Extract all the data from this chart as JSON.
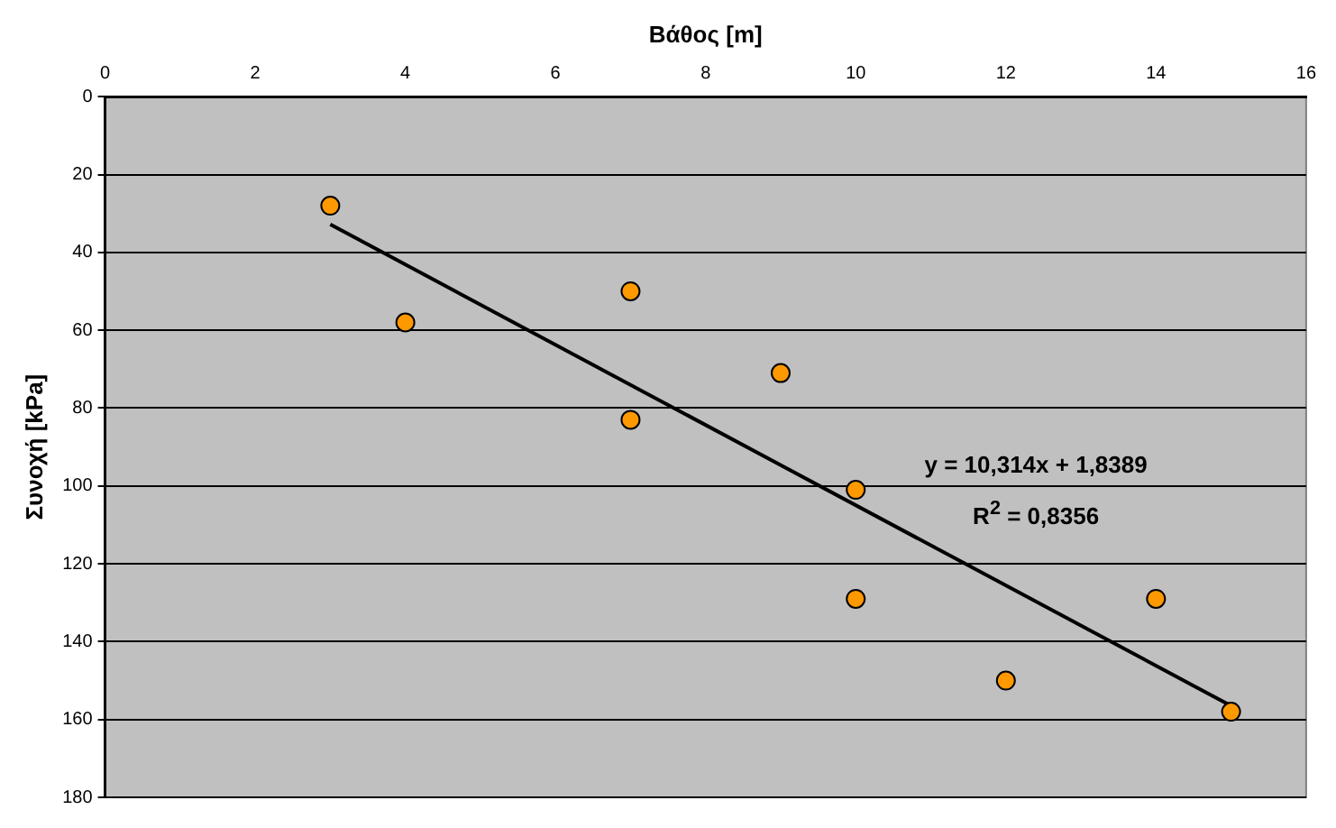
{
  "chart_data": {
    "type": "scatter",
    "xlabel": "Βάθος [m]",
    "ylabel": "Συνοχή [kPa]",
    "xlim": [
      0,
      16
    ],
    "xticks": [
      0,
      2,
      4,
      6,
      8,
      10,
      12,
      14,
      16
    ],
    "ylim": [
      180,
      0
    ],
    "yticks": [
      0,
      20,
      40,
      60,
      80,
      100,
      120,
      140,
      160,
      180
    ],
    "grid": "y",
    "legend": false,
    "marker": "circle",
    "annotations": [
      "y = 10,314x + 1,8389",
      "R$^{2}$ = 0,8356"
    ],
    "series": [
      {
        "type": "scatter",
        "color": "#ff9900",
        "x": [
          3,
          4,
          7,
          7,
          9,
          10,
          10,
          12,
          14,
          15
        ],
        "values": [
          28,
          58,
          50,
          83,
          71,
          101,
          129,
          150,
          129,
          158
        ]
      },
      {
        "type": "line",
        "color": "#000000",
        "line_style": "solid",
        "marker": "none",
        "x": [
          3,
          15
        ],
        "values": [
          32.8,
          156.5
        ]
      }
    ]
  }
}
